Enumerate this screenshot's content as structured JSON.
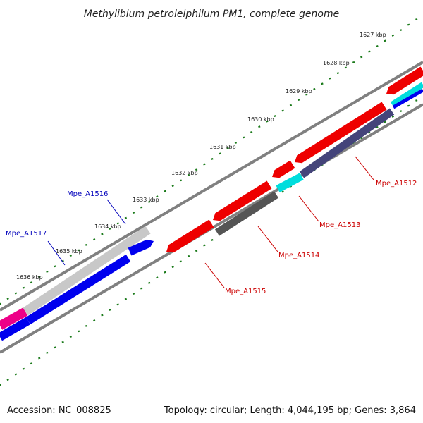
{
  "title": "Methylibium petroleiphilum PM1, complete genome",
  "footer": {
    "accession": "Accession: NC_008825",
    "summary": "Topology: circular; Length: 4,044,195 bp; Genes: 3,864"
  },
  "colors": {
    "backbone": "#808080",
    "tick": "#1a7a1a",
    "red": "#ee0000",
    "darkgray": "#555555",
    "cyan": "#00dddd",
    "navy": "#44447a",
    "lightgray": "#c8c8c8",
    "blue": "#0000ee",
    "magenta": "#ee0088",
    "label_red": "#cc0000",
    "label_blue": "#0000bb"
  },
  "ticks": [
    {
      "label": "1627 kbp"
    },
    {
      "label": "1628 kbp"
    },
    {
      "label": "1629 kbp"
    },
    {
      "label": "1630 kbp"
    },
    {
      "label": "1631 kbp"
    },
    {
      "label": "1632 kbp"
    },
    {
      "label": "1633 kbp"
    },
    {
      "label": "1634 kbp"
    },
    {
      "label": "1635 kbp"
    },
    {
      "label": "1636 kbp"
    }
  ],
  "genes": [
    {
      "label": "Mpe_A1512",
      "color": "label_red"
    },
    {
      "label": "Mpe_A1513",
      "color": "label_red"
    },
    {
      "label": "Mpe_A1514",
      "color": "label_red"
    },
    {
      "label": "Mpe_A1515",
      "color": "label_red"
    },
    {
      "label": "Mpe_A1516",
      "color": "label_blue"
    },
    {
      "label": "Mpe_A1517",
      "color": "label_blue"
    }
  ]
}
